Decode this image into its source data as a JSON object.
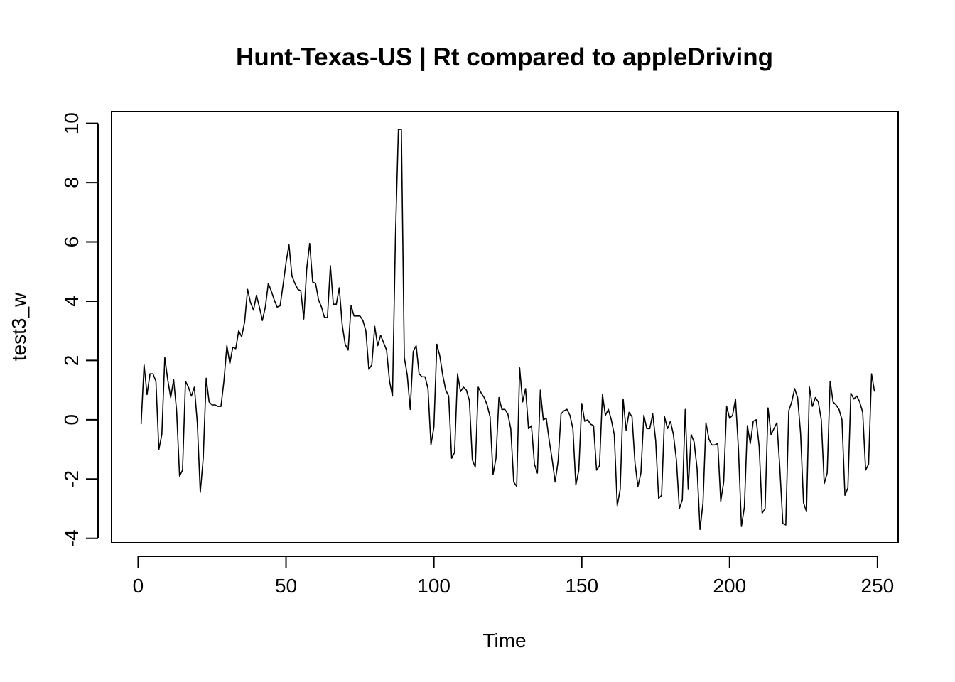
{
  "chart_data": {
    "type": "line",
    "title": "Hunt-Texas-US | Rt compared to appleDriving",
    "xlabel": "Time",
    "ylabel": "test3_w",
    "xlim": [
      -9,
      257
    ],
    "ylim": [
      -4.15,
      10.4
    ],
    "x_ticks": [
      0,
      50,
      100,
      150,
      200,
      250
    ],
    "y_ticks": [
      -4,
      -2,
      0,
      2,
      4,
      6,
      8,
      10
    ],
    "grid": false,
    "line_color": "#000000",
    "x_start": 1,
    "values": [
      -0.15,
      1.85,
      0.85,
      1.55,
      1.55,
      1.3,
      -1.0,
      -0.5,
      2.1,
      1.35,
      0.75,
      1.35,
      0.3,
      -1.9,
      -1.7,
      1.3,
      1.1,
      0.8,
      1.1,
      -0.1,
      -2.45,
      -1.3,
      1.4,
      0.6,
      0.5,
      0.5,
      0.45,
      0.45,
      1.3,
      2.5,
      1.9,
      2.45,
      2.4,
      3.0,
      2.8,
      3.3,
      4.4,
      3.95,
      3.7,
      4.2,
      3.8,
      3.35,
      3.8,
      4.6,
      4.35,
      4.05,
      3.8,
      3.85,
      4.55,
      5.3,
      5.9,
      4.85,
      4.6,
      4.4,
      4.35,
      3.4,
      5.1,
      5.95,
      4.65,
      4.6,
      4.05,
      3.8,
      3.45,
      3.45,
      5.2,
      3.9,
      3.9,
      4.45,
      3.2,
      2.55,
      2.35,
      3.85,
      3.5,
      3.5,
      3.5,
      3.35,
      3.0,
      1.7,
      1.85,
      3.15,
      2.5,
      2.85,
      2.6,
      2.35,
      1.3,
      0.8,
      6.2,
      9.8,
      9.8,
      2.1,
      1.5,
      0.35,
      2.3,
      2.5,
      1.55,
      1.45,
      1.45,
      1.05,
      -0.85,
      -0.25,
      2.55,
      2.15,
      1.5,
      1.0,
      0.8,
      -1.3,
      -1.1,
      1.55,
      0.95,
      1.1,
      1.0,
      0.65,
      -1.35,
      -1.6,
      1.1,
      0.9,
      0.75,
      0.5,
      0.1,
      -1.85,
      -1.3,
      0.75,
      0.35,
      0.35,
      0.2,
      -0.3,
      -2.1,
      -2.25,
      1.75,
      0.6,
      1.05,
      -0.3,
      -0.2,
      -1.5,
      -1.8,
      1.0,
      0.0,
      0.05,
      -0.7,
      -1.35,
      -2.1,
      -1.4,
      0.2,
      0.3,
      0.35,
      0.15,
      -0.3,
      -2.2,
      -1.7,
      0.55,
      -0.05,
      0.0,
      -0.15,
      -0.2,
      -1.7,
      -1.55,
      0.85,
      0.15,
      0.35,
      0.0,
      -0.5,
      -2.9,
      -2.35,
      0.7,
      -0.35,
      0.25,
      0.1,
      -1.45,
      -2.25,
      -1.8,
      0.15,
      -0.3,
      -0.3,
      0.2,
      -0.7,
      -2.65,
      -2.55,
      0.1,
      -0.3,
      -0.05,
      -0.5,
      -1.35,
      -3.0,
      -2.7,
      0.35,
      -2.35,
      -0.5,
      -0.75,
      -1.65,
      -3.7,
      -2.8,
      -0.1,
      -0.65,
      -0.85,
      -0.85,
      -0.8,
      -2.75,
      -2.1,
      0.45,
      0.05,
      0.15,
      0.7,
      -1.0,
      -3.6,
      -2.95,
      -0.2,
      -0.8,
      -0.05,
      0.0,
      -0.9,
      -3.15,
      -3.0,
      0.4,
      -0.5,
      -0.3,
      -0.1,
      -1.65,
      -3.5,
      -3.55,
      0.3,
      0.6,
      1.05,
      0.75,
      -0.45,
      -2.8,
      -3.1,
      1.1,
      0.45,
      0.75,
      0.6,
      0.0,
      -2.15,
      -1.8,
      1.3,
      0.6,
      0.5,
      0.35,
      0.0,
      -2.55,
      -2.3,
      0.9,
      0.7,
      0.8,
      0.6,
      0.25,
      -1.7,
      -1.5,
      1.55,
      0.95
    ]
  }
}
